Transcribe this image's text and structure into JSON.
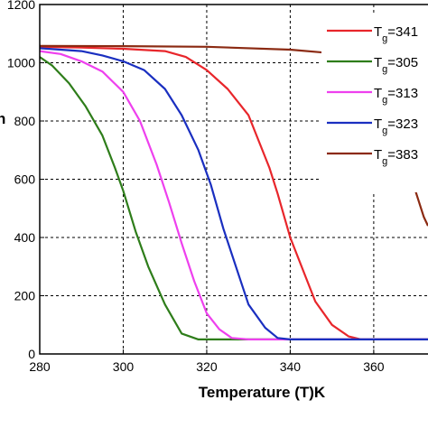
{
  "chart_data": {
    "type": "line",
    "title": "",
    "xlabel": "Temperature (T)K",
    "ylabel": "",
    "y_axis_fragment": "n",
    "xlim": [
      280,
      373
    ],
    "ylim": [
      0,
      1200
    ],
    "xticks": [
      280,
      300,
      320,
      340,
      360
    ],
    "yticks": [
      0,
      200,
      400,
      600,
      800,
      1000,
      1200
    ],
    "xtick_labels": [
      "280",
      "300",
      "320",
      "340",
      "360"
    ],
    "ytick_labels": [
      "0",
      "200",
      "400",
      "600",
      "800",
      "1000",
      "1200"
    ],
    "grid": true,
    "legend_position": "right",
    "series": [
      {
        "name_main": "T",
        "name_sub": "g",
        "name_rest": "=341",
        "color": "#e8262b",
        "x": [
          280,
          290,
          300,
          310,
          315,
          320,
          325,
          330,
          335,
          337,
          340,
          343,
          346,
          350,
          354,
          357,
          360,
          373
        ],
        "y": [
          1055,
          1052,
          1048,
          1040,
          1020,
          975,
          910,
          820,
          640,
          550,
          400,
          290,
          180,
          100,
          60,
          50,
          50,
          50
        ]
      },
      {
        "name_main": "T",
        "name_sub": "g",
        "name_rest": "=305",
        "color": "#2e7d1a",
        "x": [
          280,
          283,
          287,
          291,
          295,
          298,
          300,
          303,
          306,
          310,
          314,
          318,
          322,
          373
        ],
        "y": [
          1020,
          990,
          930,
          850,
          750,
          640,
          560,
          420,
          300,
          170,
          70,
          50,
          50,
          50
        ]
      },
      {
        "name_main": "T",
        "name_sub": "g",
        "name_rest": "=313",
        "color": "#ee40ee",
        "x": [
          280,
          285,
          290,
          295,
          300,
          304,
          308,
          311,
          314,
          317,
          320,
          323,
          326,
          330,
          373
        ],
        "y": [
          1040,
          1030,
          1005,
          970,
          900,
          800,
          650,
          520,
          380,
          250,
          140,
          85,
          55,
          50,
          50
        ]
      },
      {
        "name_main": "T",
        "name_sub": "g",
        "name_rest": "=323",
        "color": "#1a2fc0",
        "x": [
          280,
          285,
          290,
          295,
          300,
          305,
          310,
          314,
          318,
          321,
          324,
          327,
          330,
          334,
          337,
          340,
          373
        ],
        "y": [
          1050,
          1045,
          1040,
          1025,
          1005,
          975,
          910,
          820,
          700,
          580,
          430,
          300,
          170,
          90,
          55,
          50,
          50
        ]
      },
      {
        "name_main": "T",
        "name_sub": "g",
        "name_rest": "=383",
        "color": "#8b2a12",
        "x": [
          280,
          300,
          320,
          340,
          348,
          354,
          358,
          362,
          365,
          368,
          370,
          372,
          373
        ],
        "y": [
          1058,
          1057,
          1055,
          1045,
          1035,
          1010,
          960,
          860,
          760,
          640,
          560,
          470,
          440
        ]
      }
    ]
  }
}
